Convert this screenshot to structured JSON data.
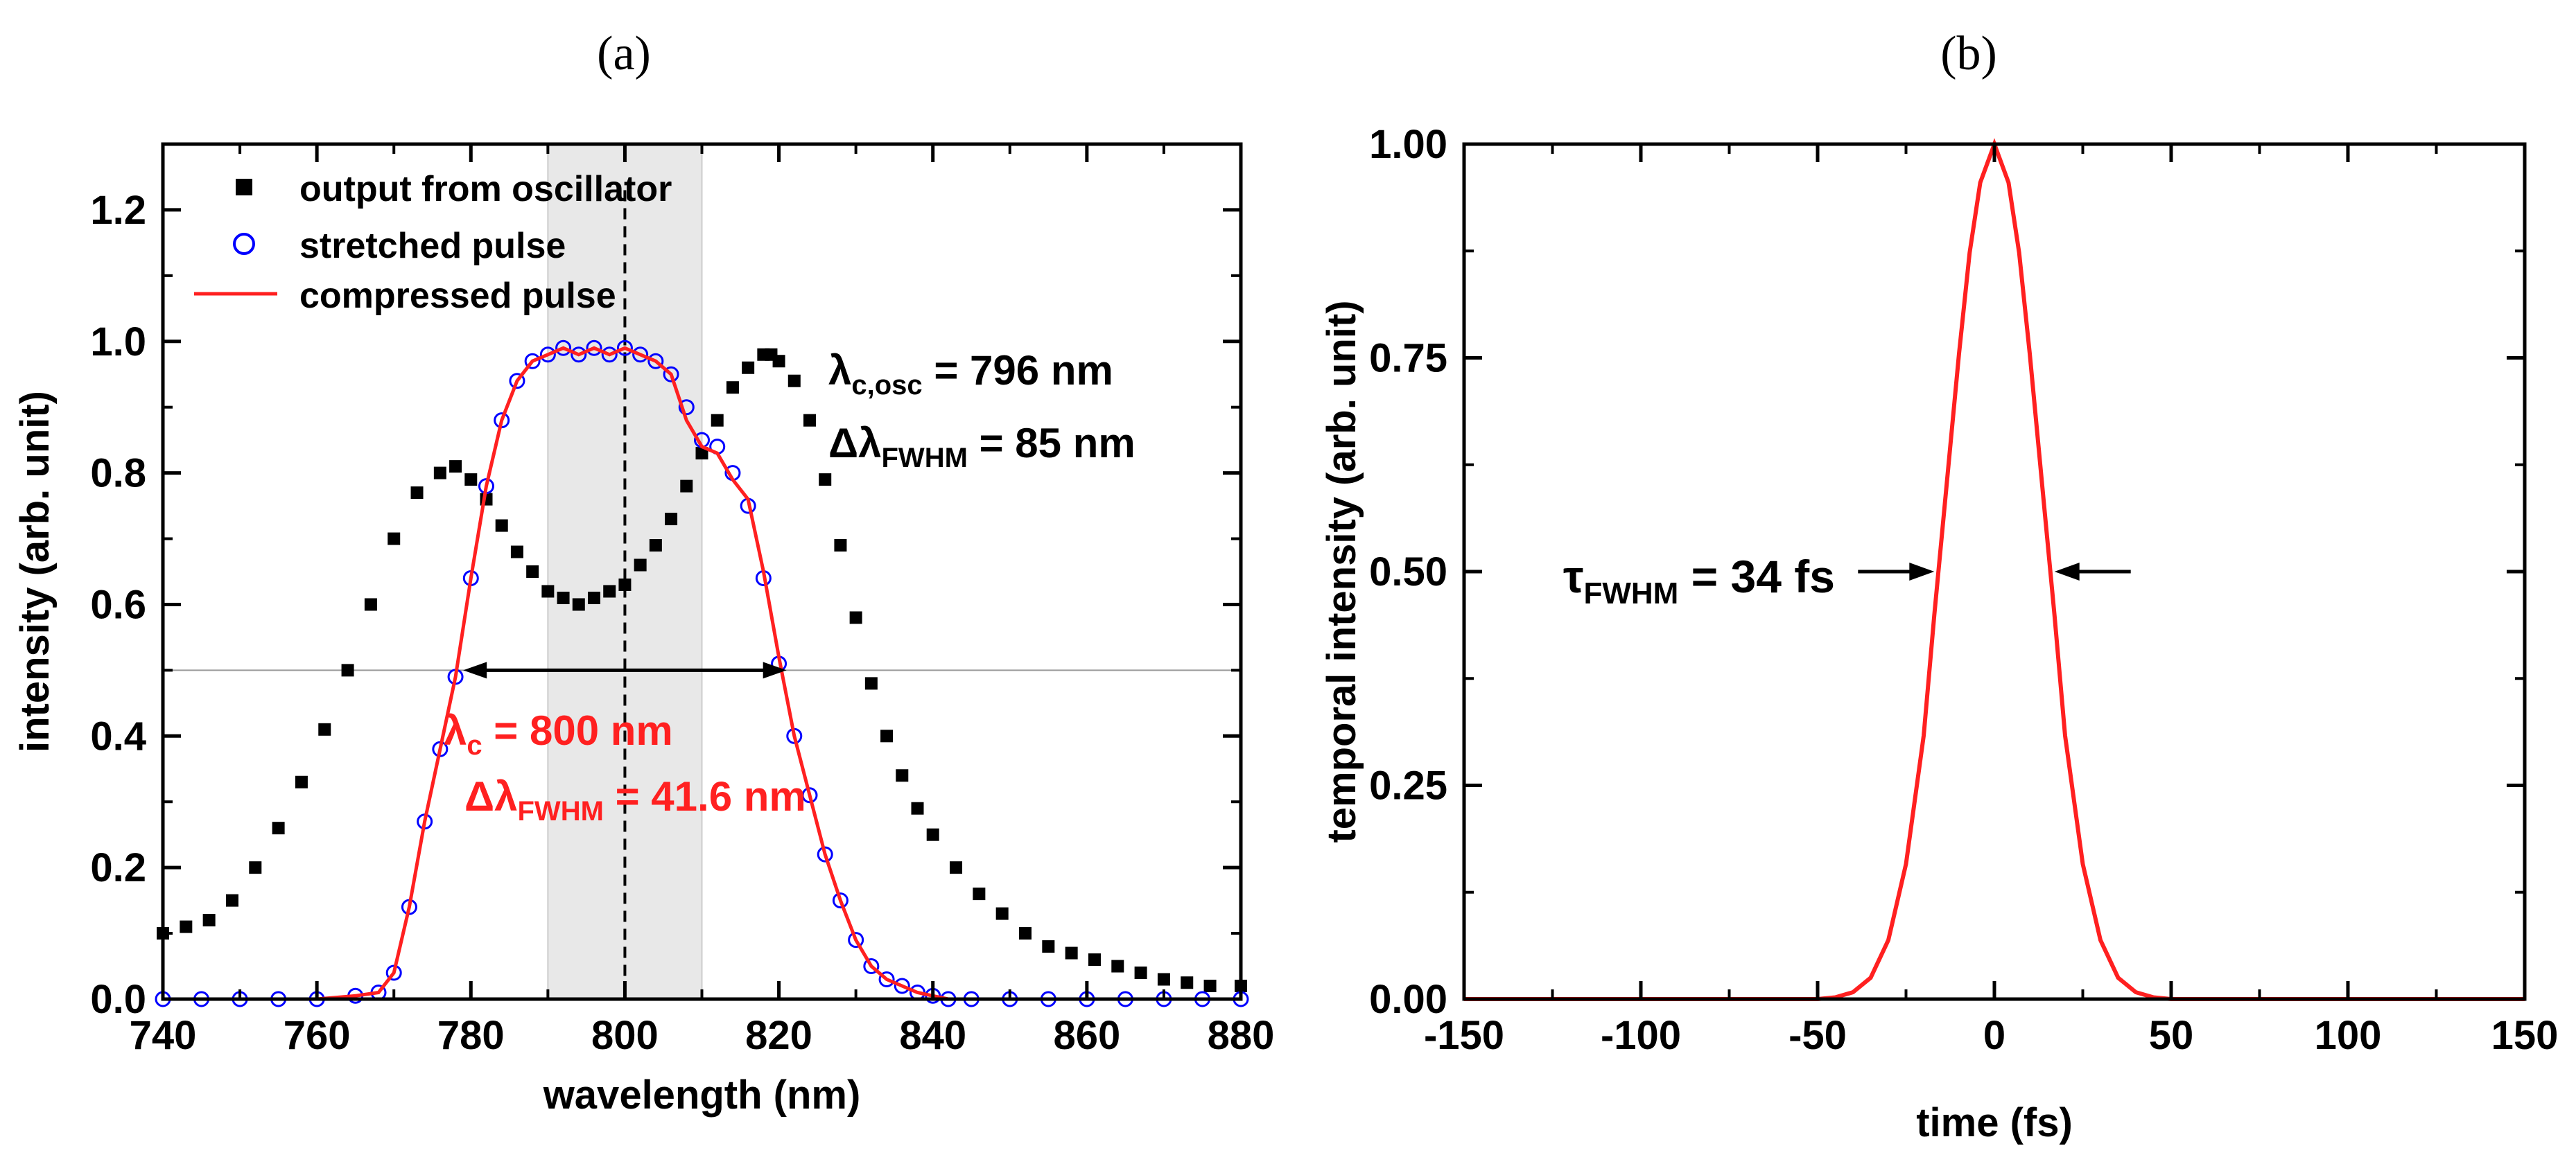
{
  "figure": {
    "panel_a_label": "(a)",
    "panel_b_label": "(b)"
  },
  "colors": {
    "oscillator": "#000000",
    "stretched": "#0000ff",
    "compressed": "#ff2020",
    "temporal": "#ff2020",
    "band": "#e8e8e8",
    "guide": "#999999"
  },
  "chart_data": [
    {
      "type": "scatter",
      "title": "(a)",
      "xlabel": "wavelength (nm)",
      "ylabel": "intensity (arb. unit)",
      "xlim": [
        740,
        880
      ],
      "ylim": [
        0,
        1.3
      ],
      "xticks": [
        740,
        760,
        780,
        800,
        820,
        840,
        860,
        880
      ],
      "xtick_labels": [
        "740",
        "760",
        "780",
        "800",
        "820",
        "840",
        "860",
        "880"
      ],
      "yticks": [
        0,
        0.2,
        0.4,
        0.6,
        0.8,
        1.0,
        1.2
      ],
      "ytick_labels": [
        "0.0",
        "0.2",
        "0.4",
        "0.6",
        "0.8",
        "1.0",
        "1.2"
      ],
      "legend": {
        "position": "top-left",
        "entries": [
          "output from oscillator",
          "stretched pulse",
          "compressed pulse"
        ]
      },
      "shaded_band": [
        790,
        810
      ],
      "center_line_x": 800,
      "half_max_y": 0.5,
      "fwhm_arrow": [
        779,
        821
      ],
      "annotations": {
        "osc_center": {
          "prefix": "λ",
          "sub": "c,osc",
          "suffix": " = 796 nm"
        },
        "osc_fwhm": {
          "prefix": "Δλ",
          "sub": "FWHM",
          "suffix": " = 85 nm"
        },
        "comp_center": {
          "prefix": "λ",
          "sub": "c",
          "suffix": " = 800 nm"
        },
        "comp_fwhm": {
          "prefix": "Δλ",
          "sub": "FWHM",
          "suffix": " = 41.6 nm"
        }
      },
      "series": [
        {
          "name": "output from oscillator",
          "marker": "square",
          "x": [
            740,
            743,
            746,
            749,
            752,
            755,
            758,
            761,
            764,
            767,
            770,
            773,
            776,
            778,
            780,
            782,
            784,
            786,
            788,
            790,
            792,
            794,
            796,
            798,
            800,
            802,
            804,
            806,
            808,
            810,
            812,
            814,
            816,
            818,
            819,
            820,
            822,
            824,
            826,
            828,
            830,
            832,
            834,
            836,
            838,
            840,
            843,
            846,
            849,
            852,
            855,
            858,
            861,
            864,
            867,
            870,
            873,
            876,
            880
          ],
          "values": [
            0.1,
            0.11,
            0.12,
            0.15,
            0.2,
            0.26,
            0.33,
            0.41,
            0.5,
            0.6,
            0.7,
            0.77,
            0.8,
            0.81,
            0.79,
            0.76,
            0.72,
            0.68,
            0.65,
            0.62,
            0.61,
            0.6,
            0.61,
            0.62,
            0.63,
            0.66,
            0.69,
            0.73,
            0.78,
            0.83,
            0.88,
            0.93,
            0.96,
            0.98,
            0.98,
            0.97,
            0.94,
            0.88,
            0.79,
            0.69,
            0.58,
            0.48,
            0.4,
            0.34,
            0.29,
            0.25,
            0.2,
            0.16,
            0.13,
            0.1,
            0.08,
            0.07,
            0.06,
            0.05,
            0.04,
            0.03,
            0.025,
            0.02,
            0.02
          ]
        },
        {
          "name": "stretched pulse",
          "marker": "circle",
          "x": [
            740,
            745,
            750,
            755,
            760,
            765,
            768,
            770,
            772,
            774,
            776,
            778,
            780,
            782,
            784,
            786,
            788,
            790,
            792,
            794,
            796,
            798,
            800,
            802,
            804,
            806,
            808,
            810,
            812,
            814,
            816,
            818,
            820,
            822,
            824,
            826,
            828,
            830,
            832,
            834,
            836,
            838,
            840,
            842,
            845,
            850,
            855,
            860,
            865,
            870,
            875,
            880
          ],
          "values": [
            0.0,
            0.0,
            0.0,
            0.0,
            0.0,
            0.005,
            0.01,
            0.04,
            0.14,
            0.27,
            0.38,
            0.49,
            0.64,
            0.78,
            0.88,
            0.94,
            0.97,
            0.98,
            0.99,
            0.98,
            0.99,
            0.98,
            0.99,
            0.98,
            0.97,
            0.95,
            0.9,
            0.85,
            0.84,
            0.8,
            0.75,
            0.64,
            0.51,
            0.4,
            0.31,
            0.22,
            0.15,
            0.09,
            0.05,
            0.03,
            0.02,
            0.01,
            0.005,
            0.0,
            0.0,
            0.0,
            0.0,
            0.0,
            0.0,
            0.0,
            0.0,
            0.0
          ]
        },
        {
          "name": "compressed pulse",
          "marker": "line",
          "x": [
            740,
            745,
            750,
            755,
            760,
            765,
            768,
            770,
            772,
            774,
            776,
            778,
            780,
            782,
            784,
            786,
            788,
            790,
            792,
            794,
            796,
            798,
            800,
            802,
            804,
            806,
            808,
            810,
            812,
            814,
            816,
            818,
            820,
            822,
            824,
            826,
            828,
            830,
            832,
            834,
            836,
            838,
            840,
            842,
            845,
            850,
            855,
            860,
            865,
            870,
            875,
            880
          ],
          "values": [
            0.0,
            0.0,
            0.0,
            0.0,
            0.0,
            0.005,
            0.01,
            0.04,
            0.14,
            0.27,
            0.38,
            0.49,
            0.64,
            0.78,
            0.88,
            0.94,
            0.97,
            0.98,
            0.99,
            0.98,
            0.99,
            0.98,
            0.99,
            0.98,
            0.97,
            0.95,
            0.88,
            0.84,
            0.83,
            0.79,
            0.76,
            0.65,
            0.52,
            0.4,
            0.31,
            0.22,
            0.15,
            0.09,
            0.05,
            0.03,
            0.02,
            0.01,
            0.005,
            0.0,
            0.0,
            0.0,
            0.0,
            0.0,
            0.0,
            0.0,
            0.0,
            0.0
          ]
        }
      ]
    },
    {
      "type": "line",
      "title": "(b)",
      "xlabel": "time (fs)",
      "ylabel": "temporal intensity (arb. unit)",
      "xlim": [
        -150,
        150
      ],
      "ylim": [
        0,
        1.0
      ],
      "xticks": [
        -150,
        -100,
        -50,
        0,
        50,
        100,
        150
      ],
      "xtick_labels": [
        "-150",
        "-100",
        "-50",
        "0",
        "50",
        "100",
        "150"
      ],
      "yticks": [
        0,
        0.25,
        0.5,
        0.75,
        1.0
      ],
      "ytick_labels": [
        "0.00",
        "0.25",
        "0.50",
        "0.75",
        "1.00"
      ],
      "fwhm_fs": 34,
      "annotation": {
        "prefix": "τ",
        "sub": "FWHM",
        "suffix": " = 34 fs"
      },
      "series": [
        {
          "name": "temporal intensity",
          "x": [
            -150,
            -100,
            -60,
            -50,
            -45,
            -40,
            -35,
            -30,
            -25,
            -20,
            -17,
            -14,
            -10,
            -7,
            -4,
            0,
            4,
            7,
            10,
            14,
            17,
            20,
            25,
            30,
            35,
            40,
            45,
            50,
            60,
            100,
            150
          ],
          "values": [
            0,
            0,
            0,
            0.0,
            0.002,
            0.008,
            0.025,
            0.069,
            0.158,
            0.308,
            0.449,
            0.58,
            0.755,
            0.873,
            0.955,
            1.0,
            0.955,
            0.873,
            0.755,
            0.58,
            0.449,
            0.308,
            0.158,
            0.069,
            0.025,
            0.008,
            0.002,
            0.0,
            0,
            0,
            0
          ]
        }
      ]
    }
  ]
}
